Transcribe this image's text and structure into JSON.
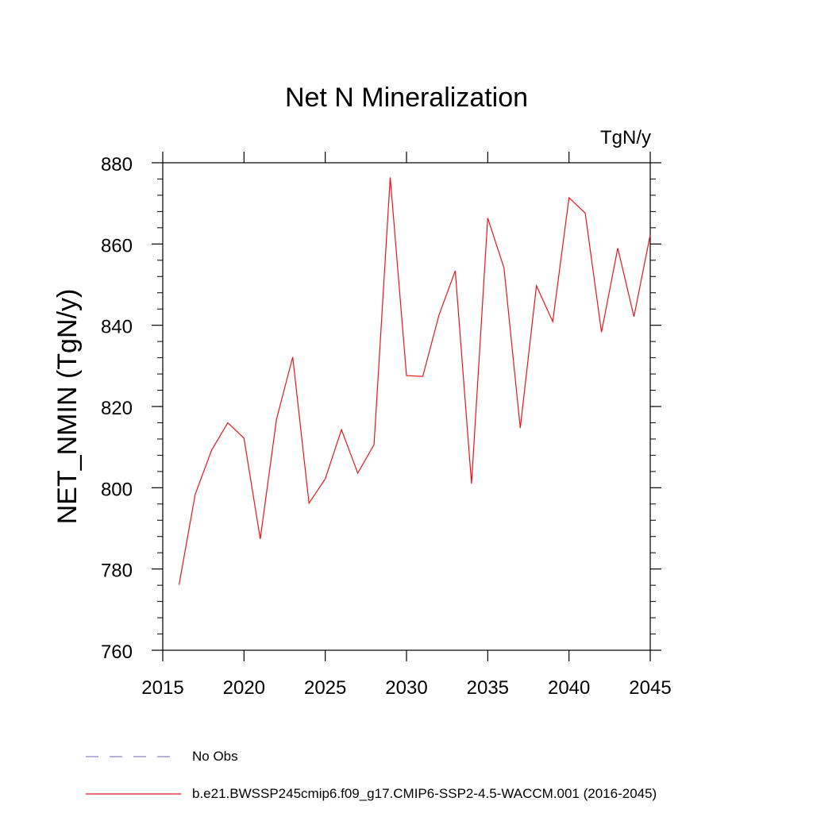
{
  "chart_data": {
    "type": "line",
    "title": "Net N Mineralization",
    "units": "TgN/y",
    "ylabel": "NET_NMIN  (TgN/y)",
    "xlabel": "",
    "xlim": [
      2015,
      2045
    ],
    "ylim": [
      760,
      880
    ],
    "xticks": [
      2015,
      2020,
      2025,
      2030,
      2035,
      2040,
      2045
    ],
    "yticks": [
      760,
      780,
      800,
      820,
      840,
      860,
      880
    ],
    "grid": false,
    "legend_position": "bottom",
    "series": [
      {
        "name": "b.e21.BWSSP245cmip6.f09_g17.CMIP6-SSP2-4.5-WACCM.001 (2016-2045)",
        "color": "#e8141c",
        "style": "solid",
        "x": [
          2016,
          2017,
          2018,
          2019,
          2020,
          2021,
          2022,
          2023,
          2024,
          2025,
          2026,
          2027,
          2028,
          2029,
          2030,
          2031,
          2032,
          2033,
          2034,
          2035,
          2036,
          2037,
          2038,
          2039,
          2040,
          2041,
          2042,
          2043,
          2044,
          2045
        ],
        "values": [
          776.1,
          798.4,
          809.2,
          816.0,
          812.2,
          787.4,
          816.9,
          832.2,
          796.2,
          802.2,
          814.3,
          803.6,
          810.6,
          876.4,
          827.6,
          827.4,
          842.5,
          853.4,
          801.0,
          866.4,
          854.1,
          814.7,
          849.7,
          840.9,
          871.4,
          867.6,
          838.3,
          859.0,
          842.1,
          862.3
        ]
      }
    ],
    "legend": [
      {
        "label": "No Obs",
        "color": "#8a7fc4",
        "style": "dashed"
      },
      {
        "label": "b.e21.BWSSP245cmip6.f09_g17.CMIP6-SSP2-4.5-WACCM.001 (2016-2045)",
        "color": "#e8141c",
        "style": "solid"
      }
    ]
  }
}
